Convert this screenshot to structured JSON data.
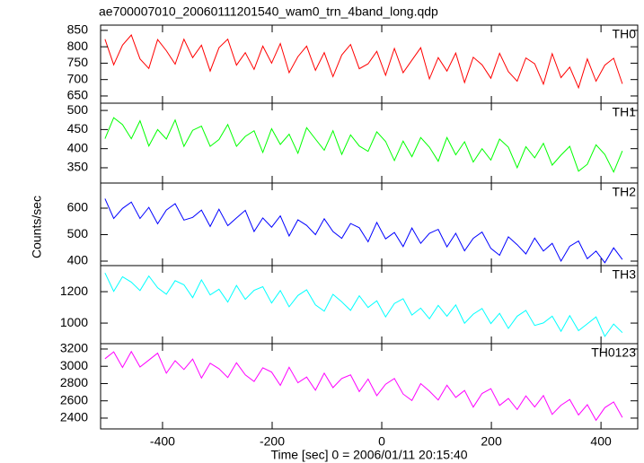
{
  "title": "ae700007010_20060111201540_wam0_trn_4band_long.qdp",
  "ylabel": "Counts/sec",
  "chart_data": [
    {
      "type": "line",
      "label": "TH0",
      "color": "#ff0000",
      "xlim": [
        -513,
        467
      ],
      "ylim": [
        628,
        866
      ],
      "yticks": [
        650,
        700,
        750,
        800,
        850
      ],
      "x": [
        -505,
        -489,
        -473,
        -457,
        -441,
        -425,
        -409,
        -393,
        -377,
        -361,
        -345,
        -329,
        -313,
        -297,
        -281,
        -265,
        -249,
        -233,
        -217,
        -201,
        -185,
        -169,
        -153,
        -137,
        -121,
        -105,
        -89,
        -73,
        -57,
        -41,
        -25,
        -9,
        7,
        23,
        39,
        55,
        71,
        87,
        103,
        119,
        135,
        151,
        167,
        183,
        199,
        215,
        231,
        247,
        263,
        279,
        295,
        311,
        327,
        343,
        359,
        375,
        391,
        407,
        423,
        439
      ],
      "values": [
        823,
        745,
        805,
        836,
        763,
        734,
        822,
        788,
        747,
        823,
        767,
        805,
        726,
        797,
        823,
        744,
        782,
        731,
        802,
        750,
        810,
        721,
        770,
        802,
        728,
        782,
        709,
        775,
        807,
        733,
        748,
        786,
        713,
        795,
        721,
        759,
        797,
        702,
        767,
        726,
        781,
        691,
        768,
        745,
        704,
        780,
        724,
        695,
        766,
        748,
        686,
        779,
        706,
        738,
        675,
        763,
        695,
        744,
        765,
        687
      ]
    },
    {
      "type": "line",
      "label": "TH1",
      "color": "#00ff00",
      "xlim": [
        -513,
        467
      ],
      "ylim": [
        310,
        519
      ],
      "yticks": [
        350,
        400,
        450,
        500
      ],
      "x": [
        -505,
        -489,
        -473,
        -457,
        -441,
        -425,
        -409,
        -393,
        -377,
        -361,
        -345,
        -329,
        -313,
        -297,
        -281,
        -265,
        -249,
        -233,
        -217,
        -201,
        -185,
        -169,
        -153,
        -137,
        -121,
        -105,
        -89,
        -73,
        -57,
        -41,
        -25,
        -9,
        7,
        23,
        39,
        55,
        71,
        87,
        103,
        119,
        135,
        151,
        167,
        183,
        199,
        215,
        231,
        247,
        263,
        279,
        295,
        311,
        327,
        343,
        359,
        375,
        391,
        407,
        423,
        439
      ],
      "values": [
        426,
        481,
        463,
        426,
        473,
        407,
        450,
        425,
        475,
        406,
        448,
        459,
        406,
        424,
        463,
        406,
        432,
        447,
        390,
        452,
        411,
        438,
        388,
        455,
        425,
        396,
        447,
        385,
        436,
        407,
        393,
        444,
        419,
        369,
        420,
        379,
        429,
        404,
        367,
        429,
        384,
        418,
        365,
        400,
        370,
        425,
        404,
        350,
        405,
        376,
        414,
        357,
        383,
        406,
        341,
        359,
        410,
        385,
        339,
        394
      ]
    },
    {
      "type": "line",
      "label": "TH2",
      "color": "#0000ff",
      "xlim": [
        -513,
        467
      ],
      "ylim": [
        383,
        695
      ],
      "yticks": [
        400,
        500,
        600
      ],
      "x": [
        -505,
        -489,
        -473,
        -457,
        -441,
        -425,
        -409,
        -393,
        -377,
        -361,
        -345,
        -329,
        -313,
        -297,
        -281,
        -265,
        -249,
        -233,
        -217,
        -201,
        -185,
        -169,
        -153,
        -137,
        -121,
        -105,
        -89,
        -73,
        -57,
        -41,
        -25,
        -9,
        7,
        23,
        39,
        55,
        71,
        87,
        103,
        119,
        135,
        151,
        167,
        183,
        199,
        215,
        231,
        247,
        263,
        279,
        295,
        311,
        327,
        343,
        359,
        375,
        391,
        407,
        423,
        439
      ],
      "values": [
        636,
        561,
        599,
        623,
        561,
        603,
        541,
        593,
        617,
        555,
        565,
        593,
        531,
        596,
        534,
        563,
        592,
        512,
        563,
        528,
        571,
        495,
        556,
        535,
        500,
        560,
        512,
        486,
        542,
        526,
        473,
        546,
        484,
        508,
        455,
        525,
        467,
        505,
        520,
        454,
        505,
        439,
        486,
        510,
        448,
        422,
        492,
        462,
        427,
        487,
        438,
        467,
        400,
        456,
        476,
        409,
        438,
        394,
        450,
        406
      ]
    },
    {
      "type": "line",
      "label": "TH3",
      "color": "#00ffff",
      "xlim": [
        -513,
        467
      ],
      "ylim": [
        869,
        1366
      ],
      "yticks": [
        1000,
        1200
      ],
      "x": [
        -505,
        -489,
        -473,
        -457,
        -441,
        -425,
        -409,
        -393,
        -377,
        -361,
        -345,
        -329,
        -313,
        -297,
        -281,
        -265,
        -249,
        -233,
        -217,
        -201,
        -185,
        -169,
        -153,
        -137,
        -121,
        -105,
        -89,
        -73,
        -57,
        -41,
        -25,
        -9,
        7,
        23,
        39,
        55,
        71,
        87,
        103,
        119,
        135,
        151,
        167,
        183,
        199,
        215,
        231,
        247,
        263,
        279,
        295,
        311,
        327,
        343,
        359,
        375,
        391,
        407,
        423,
        439
      ],
      "values": [
        1319,
        1202,
        1295,
        1261,
        1207,
        1300,
        1225,
        1184,
        1270,
        1244,
        1162,
        1275,
        1179,
        1216,
        1134,
        1240,
        1151,
        1209,
        1232,
        1128,
        1207,
        1104,
        1176,
        1212,
        1116,
        1076,
        1183,
        1135,
        1081,
        1174,
        1099,
        1142,
        1039,
        1125,
        1155,
        1051,
        1095,
        1027,
        1113,
        1044,
        1116,
        999,
        1057,
        1093,
        997,
        1062,
        966,
        1044,
        1081,
        985,
        1001,
        1044,
        948,
        1048,
        952,
        995,
        1039,
        915,
        994,
        939
      ]
    },
    {
      "type": "line",
      "label": "TH0123",
      "color": "#ff00ff",
      "xlim": [
        -513,
        467
      ],
      "ylim": [
        2275,
        3262
      ],
      "yticks": [
        2400,
        2600,
        2800,
        3000,
        3200
      ],
      "xticks": [
        -400,
        -200,
        0,
        200,
        400
      ],
      "xlabel": "Time [sec] 0 = 2006/01/11 20:15:40",
      "x": [
        -505,
        -489,
        -473,
        -457,
        -441,
        -425,
        -409,
        -393,
        -377,
        -361,
        -345,
        -329,
        -313,
        -297,
        -281,
        -265,
        -249,
        -233,
        -217,
        -201,
        -185,
        -169,
        -153,
        -137,
        -121,
        -105,
        -89,
        -73,
        -57,
        -41,
        -25,
        -9,
        7,
        23,
        39,
        55,
        71,
        87,
        103,
        119,
        135,
        151,
        167,
        183,
        199,
        215,
        231,
        247,
        263,
        279,
        295,
        311,
        327,
        343,
        359,
        375,
        391,
        407,
        423,
        439
      ],
      "values": [
        3087,
        3167,
        2987,
        3171,
        2992,
        3072,
        3152,
        2920,
        3065,
        2963,
        3083,
        2864,
        3035,
        2972,
        2870,
        3041,
        2900,
        2825,
        2983,
        2933,
        2779,
        2989,
        2809,
        2876,
        2723,
        2920,
        2753,
        2859,
        2900,
        2707,
        2853,
        2660,
        2792,
        2859,
        2679,
        2603,
        2800,
        2712,
        2610,
        2781,
        2640,
        2720,
        2527,
        2685,
        2740,
        2547,
        2627,
        2499,
        2657,
        2529,
        2662,
        2443,
        2549,
        2616,
        2436,
        2555,
        2375,
        2521,
        2588,
        2408
      ]
    }
  ]
}
